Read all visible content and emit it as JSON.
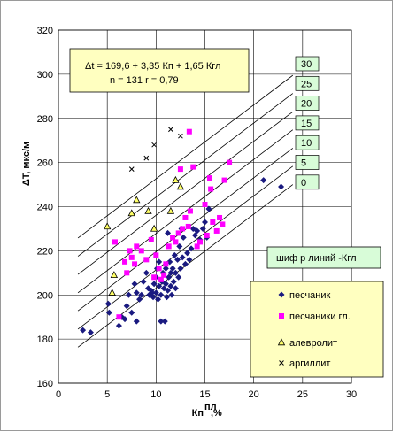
{
  "chart_data": {
    "type": "scatter",
    "title": "",
    "xlabel": "Кп",
    "xlabel_superscript": "пл",
    "xlabel_suffix": ",%",
    "ylabel": "ΔT, мкс/м",
    "xlim": [
      0,
      30
    ],
    "ylim": [
      160,
      320
    ],
    "xticks": [
      "0",
      "5",
      "10",
      "15",
      "20",
      "25",
      "30"
    ],
    "yticks": [
      "160",
      "180",
      "200",
      "220",
      "240",
      "260",
      "280",
      "300",
      "320"
    ],
    "grid": "major-both",
    "equation": {
      "line1": "Δt = 169,6 + 3,35 Кп + 1,65 Кгл",
      "line2": "n = 131   r = 0,79"
    },
    "line_cipher_label": "шиф р линий -Кгл",
    "lines": [
      {
        "label": "0",
        "x": [
          2,
          24
        ],
        "y": [
          176.3,
          250.0
        ]
      },
      {
        "label": "5",
        "x": [
          2,
          24
        ],
        "y": [
          184.5,
          258.3
        ]
      },
      {
        "label": "10",
        "x": [
          2,
          24
        ],
        "y": [
          192.8,
          266.5
        ]
      },
      {
        "label": "15",
        "x": [
          2,
          24
        ],
        "y": [
          201.0,
          274.8
        ]
      },
      {
        "label": "20",
        "x": [
          2,
          24
        ],
        "y": [
          209.3,
          283.0
        ]
      },
      {
        "label": "25",
        "x": [
          2,
          24
        ],
        "y": [
          217.5,
          291.3
        ]
      },
      {
        "label": "30",
        "x": [
          2,
          24
        ],
        "y": [
          225.8,
          299.5
        ]
      }
    ],
    "legend_placement": "lower-right",
    "series": [
      {
        "name": "песчаник",
        "marker": "diamond",
        "color": "#1a1a80",
        "points": [
          [
            2.5,
            184
          ],
          [
            3.3,
            183
          ],
          [
            5.1,
            196
          ],
          [
            5.2,
            192
          ],
          [
            6.2,
            186
          ],
          [
            6.5,
            190
          ],
          [
            7.0,
            195
          ],
          [
            7.2,
            200
          ],
          [
            7.5,
            192
          ],
          [
            7.8,
            205
          ],
          [
            8.0,
            201
          ],
          [
            8.3,
            198
          ],
          [
            8.5,
            200
          ],
          [
            8.7,
            206
          ],
          [
            9.0,
            210
          ],
          [
            9.2,
            203
          ],
          [
            9.3,
            200
          ],
          [
            9.5,
            202
          ],
          [
            9.7,
            199
          ],
          [
            9.8,
            205
          ],
          [
            10.0,
            208
          ],
          [
            10.0,
            201
          ],
          [
            10.2,
            198
          ],
          [
            10.3,
            204
          ],
          [
            10.3,
            215
          ],
          [
            10.5,
            200
          ],
          [
            10.6,
            206
          ],
          [
            10.7,
            210
          ],
          [
            10.8,
            203
          ],
          [
            10.9,
            188
          ],
          [
            11.0,
            212
          ],
          [
            11.0,
            205
          ],
          [
            11.1,
            199
          ],
          [
            11.2,
            202
          ],
          [
            11.3,
            208
          ],
          [
            11.4,
            215
          ],
          [
            11.5,
            210
          ],
          [
            11.5,
            204
          ],
          [
            11.6,
            200
          ],
          [
            11.7,
            212
          ],
          [
            11.8,
            206
          ],
          [
            11.9,
            218
          ],
          [
            12.0,
            210
          ],
          [
            12.0,
            203
          ],
          [
            12.2,
            216
          ],
          [
            12.3,
            208
          ],
          [
            12.4,
            222
          ],
          [
            12.5,
            212
          ],
          [
            12.7,
            217
          ],
          [
            12.8,
            226
          ],
          [
            13.0,
            214
          ],
          [
            13.2,
            219
          ],
          [
            13.4,
            216
          ],
          [
            13.6,
            221
          ],
          [
            13.8,
            230
          ],
          [
            14.0,
            227
          ],
          [
            14.2,
            229
          ],
          [
            14.5,
            225
          ],
          [
            14.8,
            230
          ],
          [
            15.0,
            233
          ],
          [
            15.2,
            226
          ],
          [
            15.4,
            239
          ],
          [
            10.5,
            188
          ],
          [
            21.0,
            252
          ],
          [
            22.8,
            249
          ],
          [
            8.0,
            188
          ],
          [
            9.6,
            201
          ],
          [
            10.1,
            212
          ],
          [
            12.6,
            230
          ],
          [
            11.2,
            228
          ],
          [
            6.8,
            189
          ]
        ]
      },
      {
        "name": "песчаники гл.",
        "marker": "square",
        "color": "#ff00ff",
        "points": [
          [
            5.8,
            224
          ],
          [
            6.2,
            190
          ],
          [
            6.8,
            215
          ],
          [
            7.0,
            210
          ],
          [
            7.3,
            220
          ],
          [
            7.5,
            217
          ],
          [
            7.8,
            214
          ],
          [
            8.0,
            222
          ],
          [
            8.5,
            220
          ],
          [
            9.0,
            216
          ],
          [
            9.5,
            225
          ],
          [
            9.8,
            208
          ],
          [
            10.0,
            218
          ],
          [
            10.3,
            212
          ],
          [
            10.5,
            207
          ],
          [
            10.8,
            209
          ],
          [
            11.0,
            214
          ],
          [
            11.3,
            222
          ],
          [
            11.7,
            226
          ],
          [
            12.0,
            224
          ],
          [
            12.3,
            228
          ],
          [
            12.7,
            230
          ],
          [
            13.0,
            235
          ],
          [
            13.3,
            231
          ],
          [
            13.5,
            238
          ],
          [
            13.8,
            258
          ],
          [
            13.4,
            274
          ],
          [
            14.2,
            222
          ],
          [
            14.5,
            224
          ],
          [
            15.0,
            241
          ],
          [
            15.2,
            227
          ],
          [
            15.5,
            253
          ],
          [
            15.6,
            248
          ],
          [
            15.8,
            233
          ],
          [
            16.2,
            229
          ],
          [
            16.5,
            235
          ],
          [
            17.0,
            252
          ],
          [
            17.5,
            260
          ],
          [
            12.5,
            257
          ],
          [
            16.8,
            232
          ]
        ]
      },
      {
        "name": "алевролит",
        "marker": "triangle",
        "color": "#000000",
        "points": [
          [
            5.0,
            231
          ],
          [
            5.5,
            201
          ],
          [
            5.7,
            209
          ],
          [
            7.5,
            237
          ],
          [
            8.0,
            243
          ],
          [
            9.2,
            238
          ],
          [
            9.8,
            230
          ],
          [
            11.5,
            238
          ],
          [
            12.0,
            252
          ],
          [
            12.5,
            249
          ]
        ]
      },
      {
        "name": "аргиллит",
        "marker": "x",
        "color": "#000000",
        "points": [
          [
            7.5,
            257
          ],
          [
            9.0,
            262
          ],
          [
            9.8,
            268
          ],
          [
            11.5,
            275
          ],
          [
            12.5,
            272
          ]
        ]
      }
    ]
  }
}
